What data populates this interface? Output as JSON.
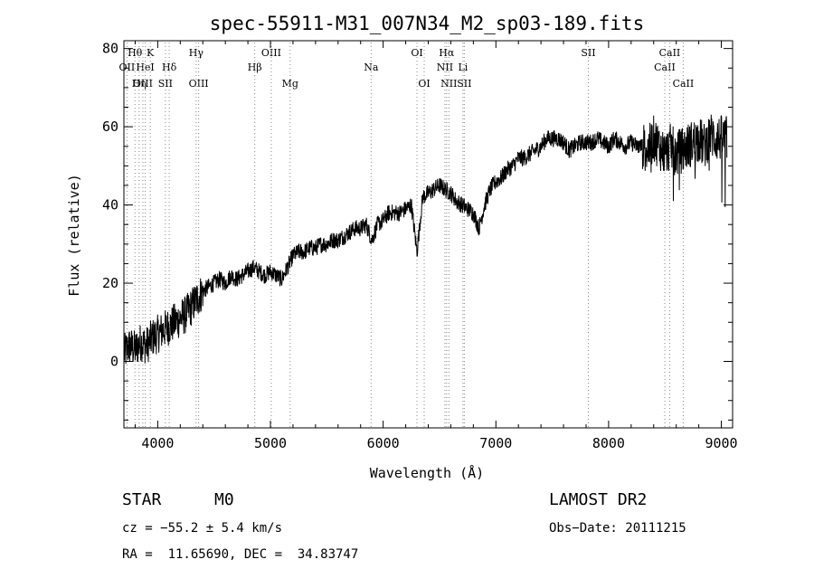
{
  "chart_data": {
    "type": "line",
    "title": "spec-55911-M31_007N34_M2_sp03-189.fits",
    "xlabel": "Wavelength (Å)",
    "ylabel": "Flux (relative)",
    "xlim": [
      3700,
      9100
    ],
    "ylim": [
      -17,
      82
    ],
    "xticks": [
      4000,
      5000,
      6000,
      7000,
      8000,
      9000
    ],
    "yticks": [
      0,
      20,
      40,
      60,
      80
    ],
    "grid": false,
    "series": [
      {
        "x": [
          3700,
          3750,
          3800,
          3850,
          3900,
          3950,
          4000,
          4050,
          4100,
          4150,
          4200,
          4250,
          4300,
          4350,
          4400,
          4450,
          4500,
          4550,
          4600,
          4650,
          4700,
          4750,
          4800,
          4850,
          4900,
          4950,
          5000,
          5050,
          5100,
          5150,
          5200,
          5250,
          5300,
          5350,
          5400,
          5450,
          5500,
          5550,
          5600,
          5650,
          5700,
          5750,
          5800,
          5850,
          5900,
          5950,
          6000,
          6050,
          6100,
          6150,
          6200,
          6250,
          6300,
          6350,
          6400,
          6450,
          6500,
          6550,
          6600,
          6650,
          6700,
          6750,
          6800,
          6850,
          6900,
          6950,
          7000,
          7050,
          7100,
          7150,
          7200,
          7250,
          7300,
          7350,
          7400,
          7450,
          7500,
          7550,
          7600,
          7650,
          7700,
          7750,
          7800,
          7850,
          7900,
          7950,
          8000,
          8050,
          8100,
          8150,
          8200,
          8250,
          8300,
          8350,
          8400,
          8450,
          8500,
          8550,
          8600,
          8650,
          8700,
          8750,
          8800,
          8850,
          8900,
          8950,
          9000,
          9050
        ],
        "values": [
          2,
          4,
          3,
          5,
          4,
          6,
          7,
          8,
          9,
          10,
          11,
          12,
          14,
          16,
          18,
          19,
          20,
          21,
          20,
          22,
          21,
          22,
          23,
          24,
          23,
          22,
          23,
          22,
          21,
          24,
          27,
          28,
          28,
          29,
          29,
          30,
          30,
          31,
          31,
          32,
          33,
          34,
          34,
          35,
          31,
          35,
          36,
          38,
          38,
          38,
          39,
          40,
          28,
          42,
          43,
          44,
          45,
          44,
          43,
          41,
          40,
          39,
          38,
          34,
          40,
          44,
          46,
          47,
          49,
          50,
          52,
          52,
          53,
          54,
          55,
          57,
          57,
          57,
          56,
          54,
          55,
          56,
          56,
          56,
          57,
          56,
          55,
          57,
          56,
          55,
          56,
          55,
          55,
          54,
          57,
          55,
          53,
          55,
          53,
          54,
          55,
          56,
          57,
          55,
          58,
          57,
          57,
          57
        ]
      }
    ],
    "lines": [
      {
        "label": "Hθ",
        "x": 3798,
        "row": 0
      },
      {
        "label": "K",
        "x": 3934,
        "row": 0
      },
      {
        "label": "Hγ",
        "x": 4341,
        "row": 0
      },
      {
        "label": "OIII",
        "x": 5007,
        "row": 0
      },
      {
        "label": "OI",
        "x": 6300,
        "row": 0
      },
      {
        "label": "Hα",
        "x": 6563,
        "row": 0
      },
      {
        "label": "SII",
        "x": 7820,
        "row": 0
      },
      {
        "label": "CaII",
        "x": 8542,
        "row": 0
      },
      {
        "label": "OII",
        "x": 3727,
        "row": 1
      },
      {
        "label": "HeI",
        "x": 3889,
        "row": 1
      },
      {
        "label": "Hδ",
        "x": 4102,
        "row": 1
      },
      {
        "label": "Hβ",
        "x": 4861,
        "row": 1
      },
      {
        "label": "Na",
        "x": 5893,
        "row": 1
      },
      {
        "label": "NII",
        "x": 6548,
        "row": 1
      },
      {
        "label": "Li",
        "x": 6708,
        "row": 1
      },
      {
        "label": "CaII",
        "x": 8498,
        "row": 1
      },
      {
        "label": "OIII",
        "x": 3868,
        "row": 2
      },
      {
        "label": "Hη",
        "x": 3835,
        "row": 2
      },
      {
        "label": "SII",
        "x": 4068,
        "row": 2
      },
      {
        "label": "OIII",
        "x": 4363,
        "row": 2
      },
      {
        "label": "Mg",
        "x": 5175,
        "row": 2
      },
      {
        "label": "OI",
        "x": 6364,
        "row": 2
      },
      {
        "label": "NII",
        "x": 6583,
        "row": 2
      },
      {
        "label": "SII",
        "x": 6720,
        "row": 2
      },
      {
        "label": "CaII",
        "x": 8662,
        "row": 2
      }
    ]
  },
  "info": {
    "object_class": "STAR",
    "subclass": "M0",
    "survey": "LAMOST DR2",
    "cz": "cz = −55.2 ± 5.4 km/s",
    "obs_date": "Obs−Date: 20111215",
    "coords": "RA =  11.65690, DEC =  34.83747"
  }
}
